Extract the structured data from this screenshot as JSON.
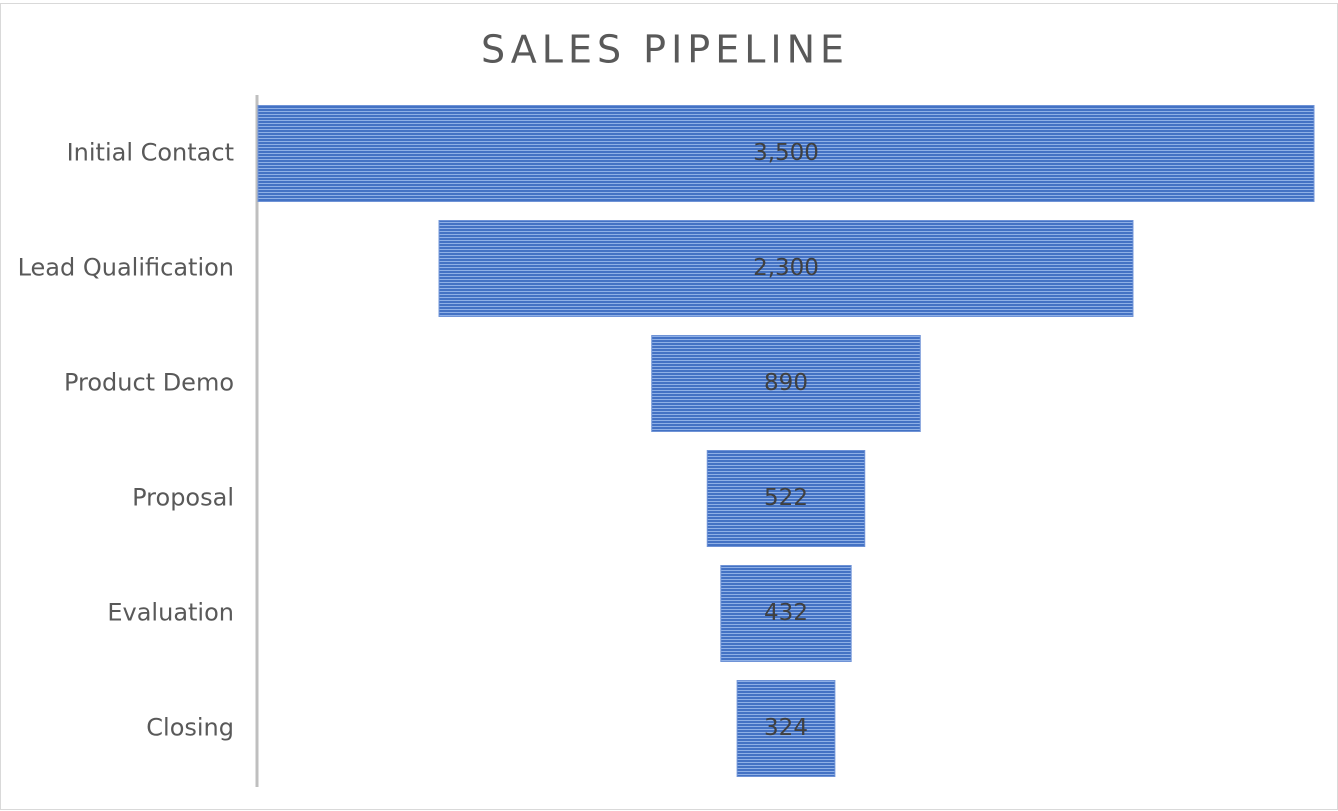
{
  "chart_data": {
    "type": "funnel",
    "title": "SALES PIPELINE",
    "categories": [
      "Initial Contact",
      "Lead Qualification",
      "Product Demo",
      "Proposal",
      "Evaluation",
      "Closing"
    ],
    "values": [
      3500,
      2300,
      890,
      522,
      432,
      324
    ],
    "value_labels": [
      "3,500",
      "2,300",
      "890",
      "522",
      "432",
      "324"
    ],
    "color": "#4472c4"
  }
}
